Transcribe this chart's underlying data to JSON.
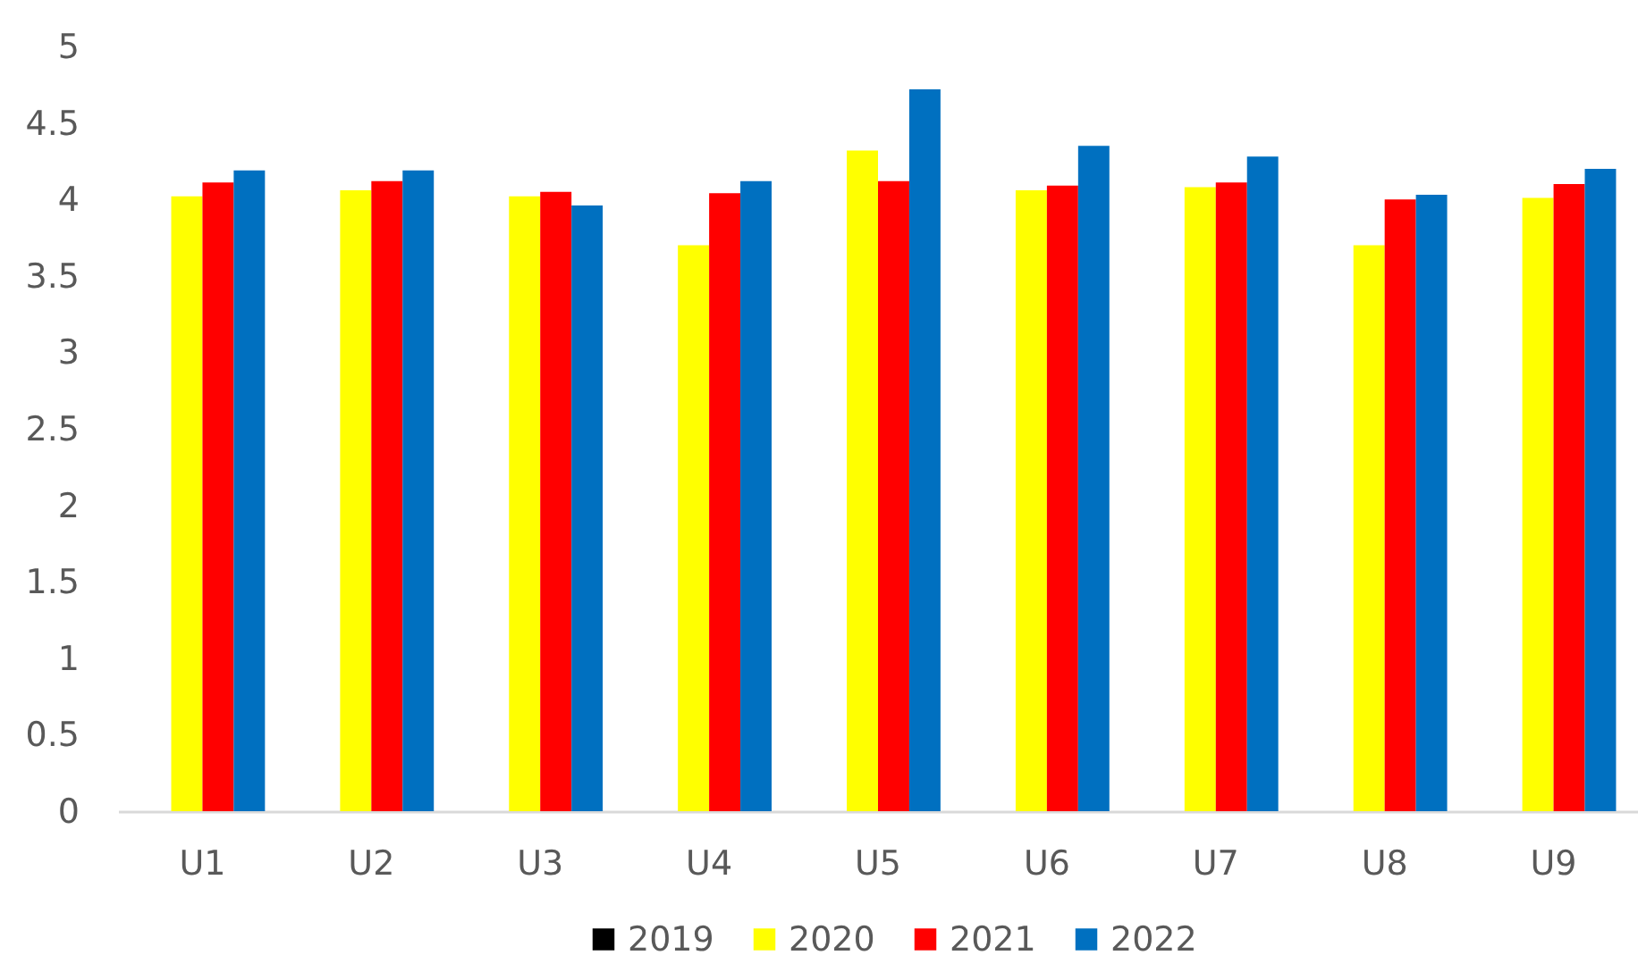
{
  "chart_data": {
    "type": "bar",
    "categories": [
      "U1",
      "U2",
      "U3",
      "U4",
      "U5",
      "U6",
      "U7",
      "U8",
      "U9"
    ],
    "series": [
      {
        "name": "2019",
        "color": "#000000",
        "values": [
          null,
          null,
          null,
          null,
          null,
          null,
          null,
          null,
          null
        ]
      },
      {
        "name": "2020",
        "color": "#ffff00",
        "values": [
          4.02,
          4.06,
          4.02,
          3.7,
          4.32,
          4.06,
          4.08,
          3.7,
          4.01
        ]
      },
      {
        "name": "2021",
        "color": "#ff0000",
        "values": [
          4.11,
          4.12,
          4.05,
          4.04,
          4.12,
          4.09,
          4.11,
          4.0,
          4.1
        ]
      },
      {
        "name": "2022",
        "color": "#0070c0",
        "values": [
          4.19,
          4.19,
          3.96,
          4.12,
          4.72,
          4.35,
          4.28,
          4.03,
          4.2
        ]
      }
    ],
    "ylim": [
      0,
      5
    ],
    "yticks": [
      0,
      0.5,
      1,
      1.5,
      2,
      2.5,
      3,
      3.5,
      4,
      4.5,
      5
    ],
    "legend": "bottom"
  }
}
